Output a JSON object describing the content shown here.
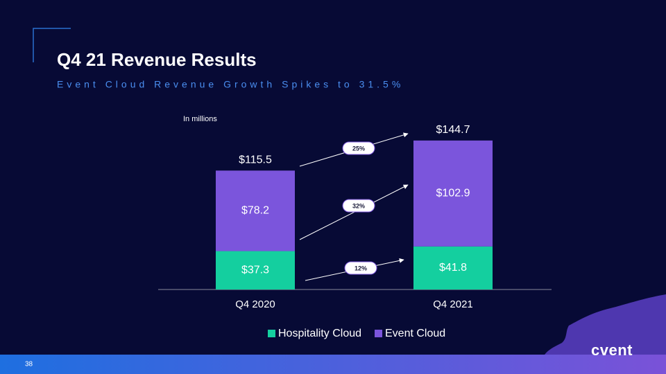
{
  "title": "Q4 21 Revenue Results",
  "subtitle": "Event Cloud Revenue Growth Spikes to 31.5%",
  "page_number": "38",
  "logo": "cvent",
  "chart_data": {
    "type": "stacked_bar",
    "unit_note": "In millions",
    "categories": [
      "Q4 2020",
      "Q4 2021"
    ],
    "series": [
      {
        "name": "Hospitality Cloud",
        "color": "#14cf9f",
        "values": [
          37.3,
          41.8
        ],
        "value_labels": [
          "$37.3",
          "$41.8"
        ]
      },
      {
        "name": "Event Cloud",
        "color": "#7b55dc",
        "values": [
          78.2,
          102.9
        ],
        "value_labels": [
          "$78.2",
          "$102.9"
        ]
      }
    ],
    "totals": [
      115.5,
      144.7
    ],
    "total_labels": [
      "$115.5",
      "$144.7"
    ],
    "growth_labels": [
      "25%",
      "32%",
      "12%"
    ],
    "ylim": [
      0,
      150
    ],
    "legend": "bottom"
  }
}
